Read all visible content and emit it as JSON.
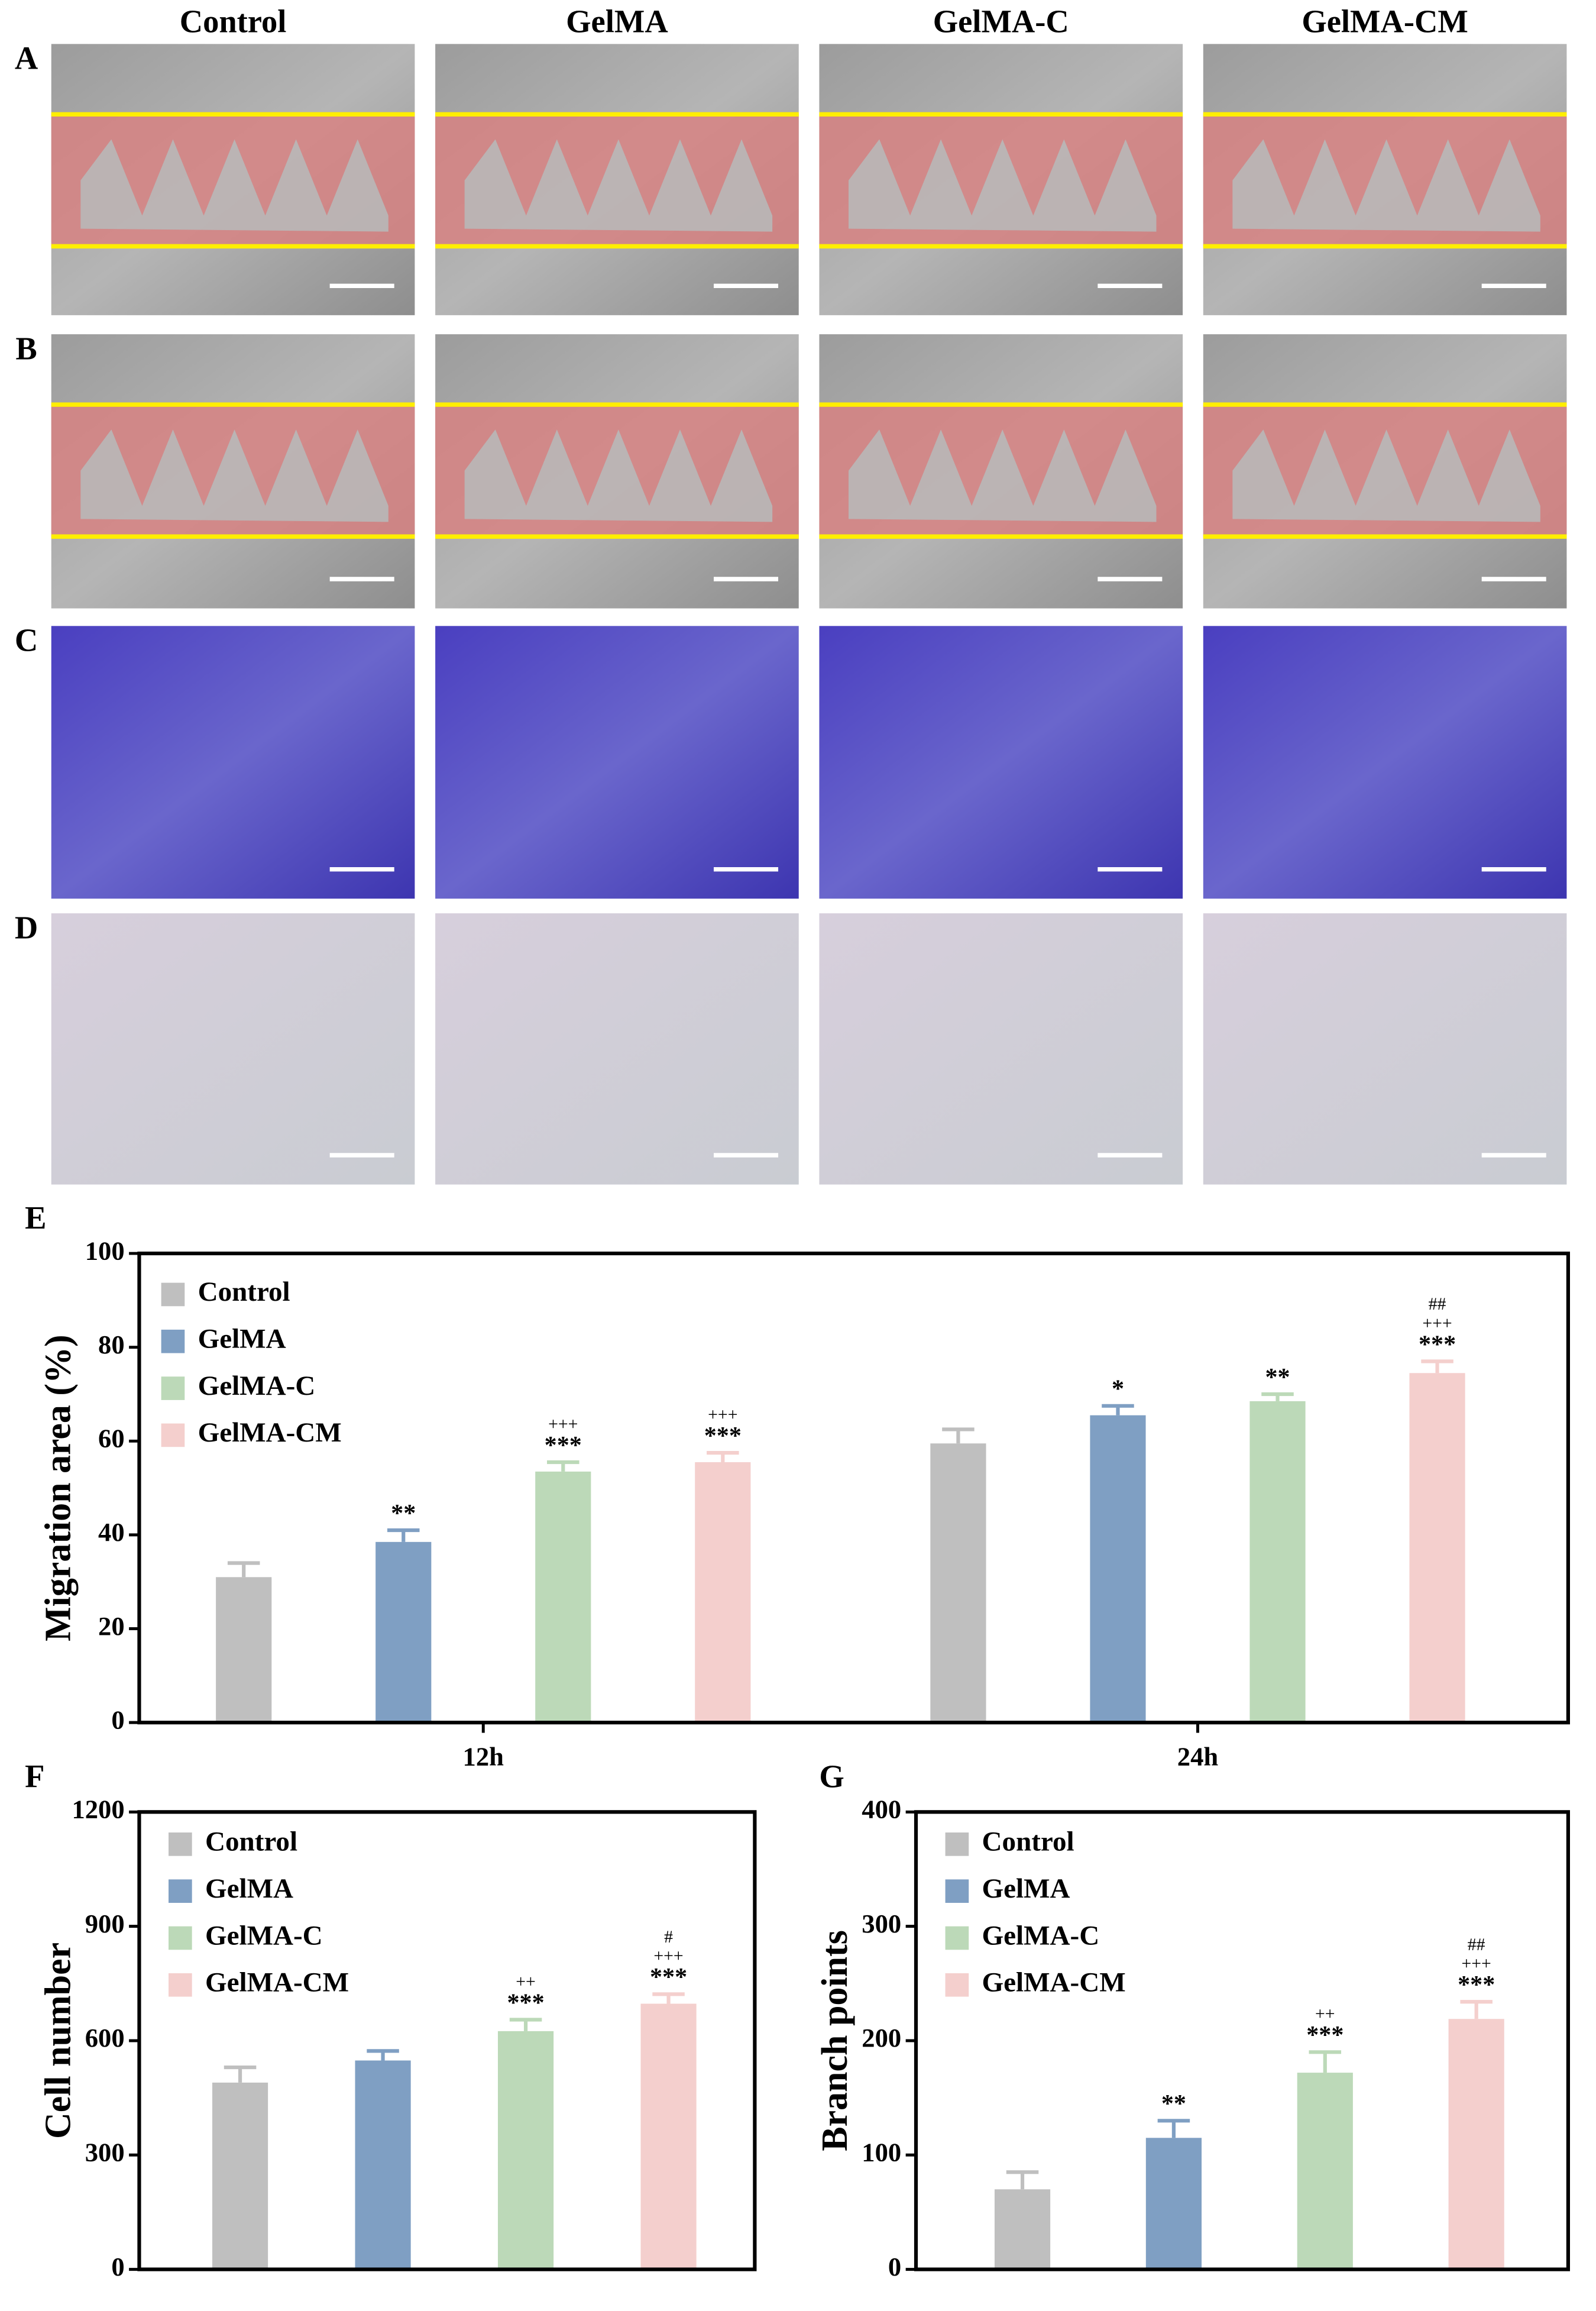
{
  "figure": {
    "columns": [
      "Control",
      "GelMA",
      "GelMA-C",
      "GelMA-CM"
    ],
    "row_labels": [
      "A",
      "B",
      "C",
      "D"
    ]
  },
  "chart_data": [
    {
      "type": "bar",
      "panel": "E",
      "ylabel": "Migration area (%)",
      "categories": [
        "12h",
        "24h"
      ],
      "ylim": [
        0,
        100
      ],
      "yticks": [
        0,
        20,
        40,
        60,
        80,
        100
      ],
      "series": [
        {
          "name": "Control",
          "color": "#bfbfbf",
          "values": [
            31,
            59.5
          ],
          "errors": [
            3,
            3
          ],
          "annotations": [
            null,
            null
          ]
        },
        {
          "name": "GelMA",
          "color": "#7f9fc3",
          "values": [
            38.5,
            65.5
          ],
          "errors": [
            2.5,
            2
          ],
          "annotations": [
            [
              "**"
            ],
            [
              "*"
            ]
          ]
        },
        {
          "name": "GelMA-C",
          "color": "#bcd9b8",
          "values": [
            53.5,
            68.5
          ],
          "errors": [
            2,
            1.5
          ],
          "annotations": [
            [
              "+++",
              "***"
            ],
            [
              "**"
            ]
          ]
        },
        {
          "name": "GelMA-CM",
          "color": "#f4cfcd",
          "values": [
            55.5,
            74.5
          ],
          "errors": [
            2,
            2.5
          ],
          "annotations": [
            [
              "+++",
              "***"
            ],
            [
              "##",
              "+++",
              "***"
            ]
          ]
        }
      ]
    },
    {
      "type": "bar",
      "panel": "F",
      "ylabel": "Cell number",
      "ylim": [
        0,
        1200
      ],
      "yticks": [
        0,
        300,
        600,
        900,
        1200
      ],
      "series": [
        {
          "name": "Control",
          "color": "#bfbfbf",
          "values": [
            490
          ],
          "errors": [
            40
          ],
          "annotations": [
            null
          ]
        },
        {
          "name": "GelMA",
          "color": "#7f9fc3",
          "values": [
            548
          ],
          "errors": [
            25
          ],
          "annotations": [
            null
          ]
        },
        {
          "name": "GelMA-C",
          "color": "#bcd9b8",
          "values": [
            625
          ],
          "errors": [
            30
          ],
          "annotations": [
            [
              "++",
              "***"
            ]
          ]
        },
        {
          "name": "GelMA-CM",
          "color": "#f4cfcd",
          "values": [
            697
          ],
          "errors": [
            25
          ],
          "annotations": [
            [
              "#",
              "+++",
              "***"
            ]
          ]
        }
      ]
    },
    {
      "type": "bar",
      "panel": "G",
      "ylabel": "Branch points",
      "ylim": [
        0,
        400
      ],
      "yticks": [
        0,
        100,
        200,
        300,
        400
      ],
      "series": [
        {
          "name": "Control",
          "color": "#bfbfbf",
          "values": [
            70
          ],
          "errors": [
            15
          ],
          "annotations": [
            null
          ]
        },
        {
          "name": "GelMA",
          "color": "#7f9fc3",
          "values": [
            115
          ],
          "errors": [
            15
          ],
          "annotations": [
            [
              "**"
            ]
          ]
        },
        {
          "name": "GelMA-C",
          "color": "#bcd9b8",
          "values": [
            172
          ],
          "errors": [
            18
          ],
          "annotations": [
            [
              "++",
              "***"
            ]
          ]
        },
        {
          "name": "GelMA-CM",
          "color": "#f4cfcd",
          "values": [
            219
          ],
          "errors": [
            15
          ],
          "annotations": [
            [
              "##",
              "+++",
              "***"
            ]
          ]
        }
      ]
    }
  ]
}
